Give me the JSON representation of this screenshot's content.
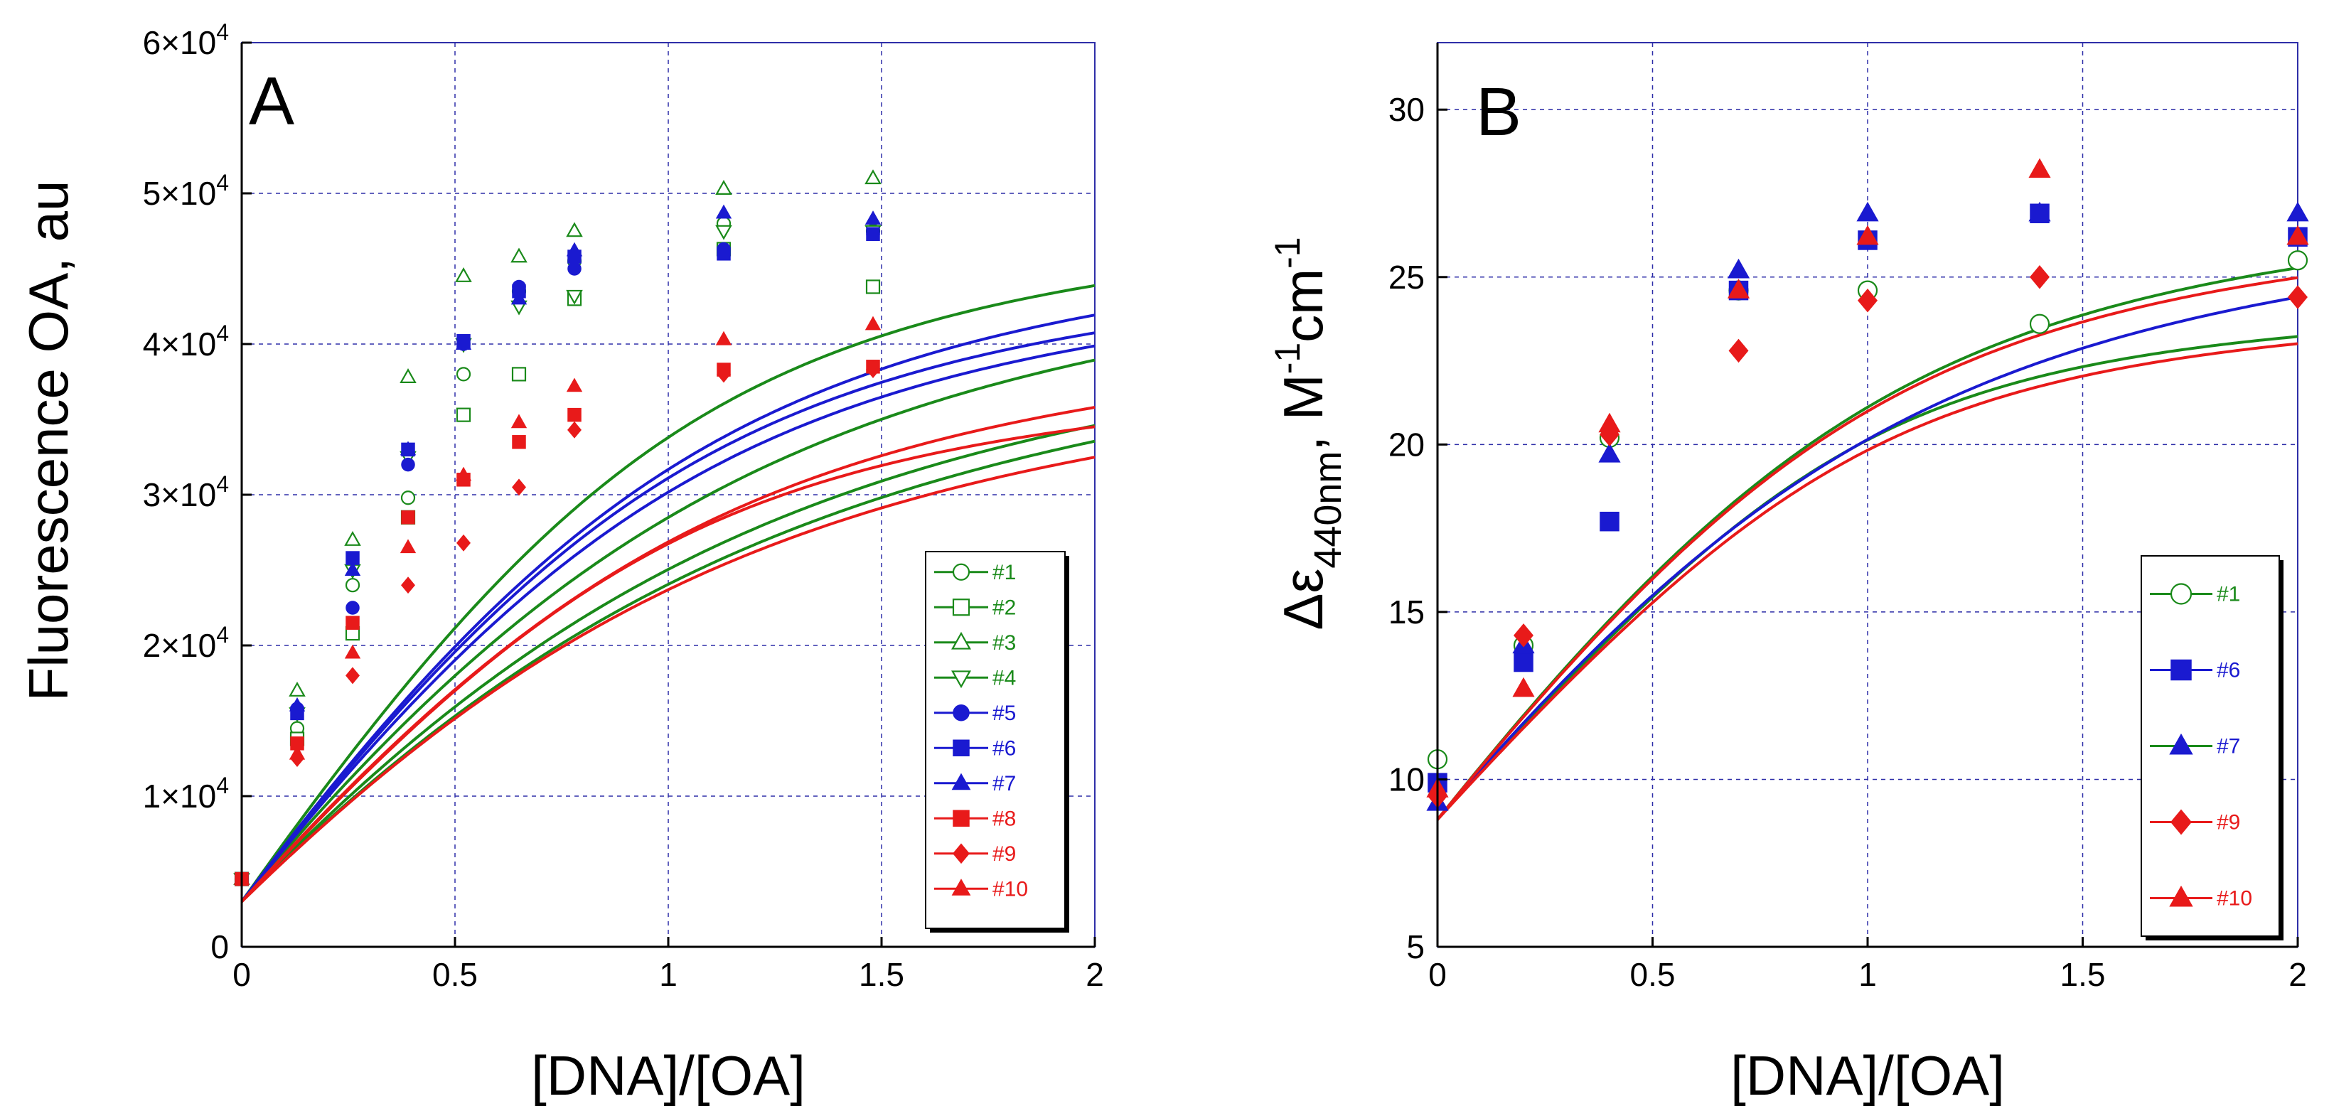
{
  "chart_data": [
    {
      "panel": "A",
      "type": "scatter",
      "title": "",
      "panel_label": "A",
      "xlabel": "[DNA]/[OA]",
      "ylabel": "Fluorescence OA, au",
      "xlim": [
        0,
        2
      ],
      "ylim": [
        0,
        60000
      ],
      "xticks": [
        0,
        0.5,
        1,
        1.5,
        2
      ],
      "xtick_labels": [
        "0",
        "0.5",
        "1",
        "1.5",
        "2"
      ],
      "yticks": [
        0,
        10000,
        20000,
        30000,
        40000,
        50000,
        60000
      ],
      "ytick_labels": [
        {
          "mant": "0",
          "exp": ""
        },
        {
          "mant": "1×10",
          "exp": "4"
        },
        {
          "mant": "2×10",
          "exp": "4"
        },
        {
          "mant": "3×10",
          "exp": "4"
        },
        {
          "mant": "4×10",
          "exp": "4"
        },
        {
          "mant": "5×10",
          "exp": "4"
        },
        {
          "mant": "6×10",
          "exp": "4"
        }
      ],
      "grid": true,
      "legend_position": "bottom-right",
      "series": [
        {
          "name": "#1",
          "color": "#1a8a1a",
          "marker": "circle-open",
          "x": [
            0,
            0.13,
            0.26,
            0.39,
            0.52,
            0.65,
            0.78,
            1.13,
            1.48
          ],
          "y": [
            4500,
            14500,
            24000,
            29800,
            38000,
            43500,
            45500,
            48000,
            47500
          ],
          "fit": {
            "A0": 3000,
            "A": 43500,
            "r": 0.55
          }
        },
        {
          "name": "#2",
          "color": "#1a8a1a",
          "marker": "square-open",
          "x": [
            0,
            0.13,
            0.26,
            0.39,
            0.52,
            0.65,
            0.78,
            1.13,
            1.48
          ],
          "y": [
            4500,
            13800,
            20800,
            28500,
            35300,
            38000,
            43000,
            46300,
            43800
          ],
          "fit": {
            "A0": 3000,
            "A": 43500,
            "r": 0.48
          }
        },
        {
          "name": "#3",
          "color": "#1a8a1a",
          "marker": "triangle-up-open",
          "x": [
            0,
            0.13,
            0.26,
            0.39,
            0.52,
            0.65,
            0.78,
            1.13,
            1.48
          ],
          "y": [
            4500,
            17000,
            27000,
            37800,
            44500,
            45800,
            47500,
            50300,
            51000
          ],
          "fit": {
            "A0": 3000,
            "A": 48000,
            "r": 0.2
          }
        },
        {
          "name": "#4",
          "color": "#1a8a1a",
          "marker": "triangle-down-open",
          "x": [
            0,
            0.13,
            0.26,
            0.39,
            0.52,
            0.65,
            0.78,
            1.13,
            1.48
          ],
          "y": [
            4500,
            15500,
            25000,
            32500,
            40000,
            42500,
            43200,
            47500,
            47500
          ],
          "fit": {
            "A0": 3000,
            "A": 47500,
            "r": 0.4
          }
        },
        {
          "name": "#5",
          "color": "#1a1ad0",
          "marker": "circle-filled",
          "x": [
            0,
            0.13,
            0.26,
            0.39,
            0.52,
            0.65,
            0.78,
            1.13,
            1.48
          ],
          "y": [
            4500,
            15800,
            22500,
            32000,
            40000,
            43800,
            45000,
            46300,
            47300
          ],
          "fit": {
            "A0": 3000,
            "A": 45000,
            "r": 0.26
          }
        },
        {
          "name": "#6",
          "color": "#1a1ad0",
          "marker": "square-filled",
          "x": [
            0,
            0.13,
            0.26,
            0.39,
            0.52,
            0.65,
            0.78,
            1.13,
            1.48
          ],
          "y": [
            4500,
            15500,
            25800,
            33000,
            40200,
            43500,
            45800,
            46000,
            47300
          ],
          "fit": {
            "A0": 3000,
            "A": 45200,
            "r": 0.23
          }
        },
        {
          "name": "#7",
          "color": "#1a1ad0",
          "marker": "triangle-up-filled",
          "x": [
            0,
            0.13,
            0.26,
            0.39,
            0.52,
            0.65,
            0.78,
            1.13,
            1.48
          ],
          "y": [
            4500,
            16000,
            25000,
            33000,
            40000,
            43000,
            46200,
            48700,
            48300
          ],
          "fit": {
            "A0": 3000,
            "A": 47500,
            "r": 0.26
          }
        },
        {
          "name": "#8",
          "color": "#e81a1a",
          "marker": "square-filled",
          "x": [
            0,
            0.13,
            0.26,
            0.39,
            0.52,
            0.65,
            0.78,
            1.13,
            1.48
          ],
          "y": [
            4500,
            13500,
            21500,
            28500,
            31000,
            33500,
            35300,
            38300,
            38500
          ],
          "fit": {
            "A0": 3000,
            "A": 37000,
            "r": 0.2
          }
        },
        {
          "name": "#9",
          "color": "#e81a1a",
          "marker": "diamond-filled",
          "x": [
            0,
            0.13,
            0.26,
            0.39,
            0.52,
            0.65,
            0.78,
            1.13,
            1.48
          ],
          "y": [
            4500,
            12500,
            18000,
            24000,
            26800,
            30500,
            34300,
            38000,
            38300
          ],
          "fit": {
            "A0": 3000,
            "A": 40000,
            "r": 0.45
          }
        },
        {
          "name": "#10",
          "color": "#e81a1a",
          "marker": "triangle-up-filled",
          "x": [
            0,
            0.13,
            0.26,
            0.39,
            0.52,
            0.65,
            0.78,
            1.13,
            1.48
          ],
          "y": [
            4500,
            12800,
            19500,
            26500,
            31300,
            34800,
            37200,
            40300,
            41300
          ],
          "fit": {
            "A0": 3000,
            "A": 41000,
            "r": 0.3
          }
        }
      ]
    },
    {
      "panel": "B",
      "type": "scatter",
      "title": "",
      "panel_label": "B",
      "xlabel": "[DNA]/[OA]",
      "ylabel_main": "Δε",
      "ylabel_sub": "440nm",
      "ylabel_unit_prefix": ", M",
      "ylabel_exp1": "-1",
      "ylabel_unit_mid": "cm",
      "ylabel_exp2": "-1",
      "xlim": [
        0,
        2
      ],
      "ylim": [
        5,
        32
      ],
      "xticks": [
        0,
        0.5,
        1,
        1.5,
        2
      ],
      "xtick_labels": [
        "0",
        "0.5",
        "1",
        "1.5",
        "2"
      ],
      "yticks": [
        5,
        10,
        15,
        20,
        25,
        30
      ],
      "ytick_labels": [
        "5",
        "10",
        "15",
        "20",
        "25",
        "30"
      ],
      "grid": true,
      "legend_position": "bottom-right",
      "series": [
        {
          "name": "#1",
          "color": "#1a8a1a",
          "marker": "circle-open",
          "x": [
            0,
            0.2,
            0.4,
            0.7,
            1.0,
            1.4,
            2.0
          ],
          "y": [
            10.6,
            14.0,
            20.2,
            24.6,
            24.6,
            23.6,
            25.5
          ],
          "fit": {
            "A0": 8.8,
            "A": 16.0,
            "r": 0.12
          }
        },
        {
          "name": "#6",
          "color": "#1a1ad0",
          "marker": "square-filled",
          "x": [
            0,
            0.2,
            0.4,
            0.7,
            1.0,
            1.4,
            2.0
          ],
          "y": [
            9.9,
            13.5,
            17.7,
            24.6,
            26.1,
            26.9,
            26.2
          ],
          "fit": {
            "A0": 8.8,
            "A": 19.5,
            "r": 0.3
          }
        },
        {
          "name": "#7",
          "color": "#1a8a1a",
          "marker": "triangle-up-filled",
          "line_color": "#1a8a1a",
          "marker_color": "#1a1ad0",
          "label_color": "#1a1ad0",
          "x": [
            0,
            0.2,
            0.4,
            0.7,
            1.0,
            1.4,
            2.0
          ],
          "y": [
            9.3,
            14.0,
            19.7,
            25.2,
            26.9,
            26.9,
            26.9
          ],
          "fit": {
            "A0": 8.8,
            "A": 19.6,
            "r": 0.22
          }
        },
        {
          "name": "#9",
          "color": "#e81a1a",
          "marker": "diamond-filled",
          "line_color": "#e81a1a",
          "x": [
            0,
            0.2,
            0.4,
            0.7,
            1.0,
            1.4,
            2.0
          ],
          "y": [
            9.5,
            14.3,
            20.3,
            22.8,
            24.3,
            25.0,
            24.4
          ],
          "fit": {
            "A0": 8.8,
            "A": 16.0,
            "r": 0.14
          }
        },
        {
          "name": "#10",
          "color": "#e81a1a",
          "marker": "triangle-up-filled",
          "x": [
            0,
            0.2,
            0.4,
            0.7,
            1.0,
            1.4,
            2.0
          ],
          "y": [
            9.7,
            12.7,
            20.6,
            24.6,
            26.2,
            28.2,
            26.2
          ],
          "fit": {
            "A0": 8.8,
            "A": 19.0,
            "r": 0.2
          }
        }
      ]
    }
  ]
}
